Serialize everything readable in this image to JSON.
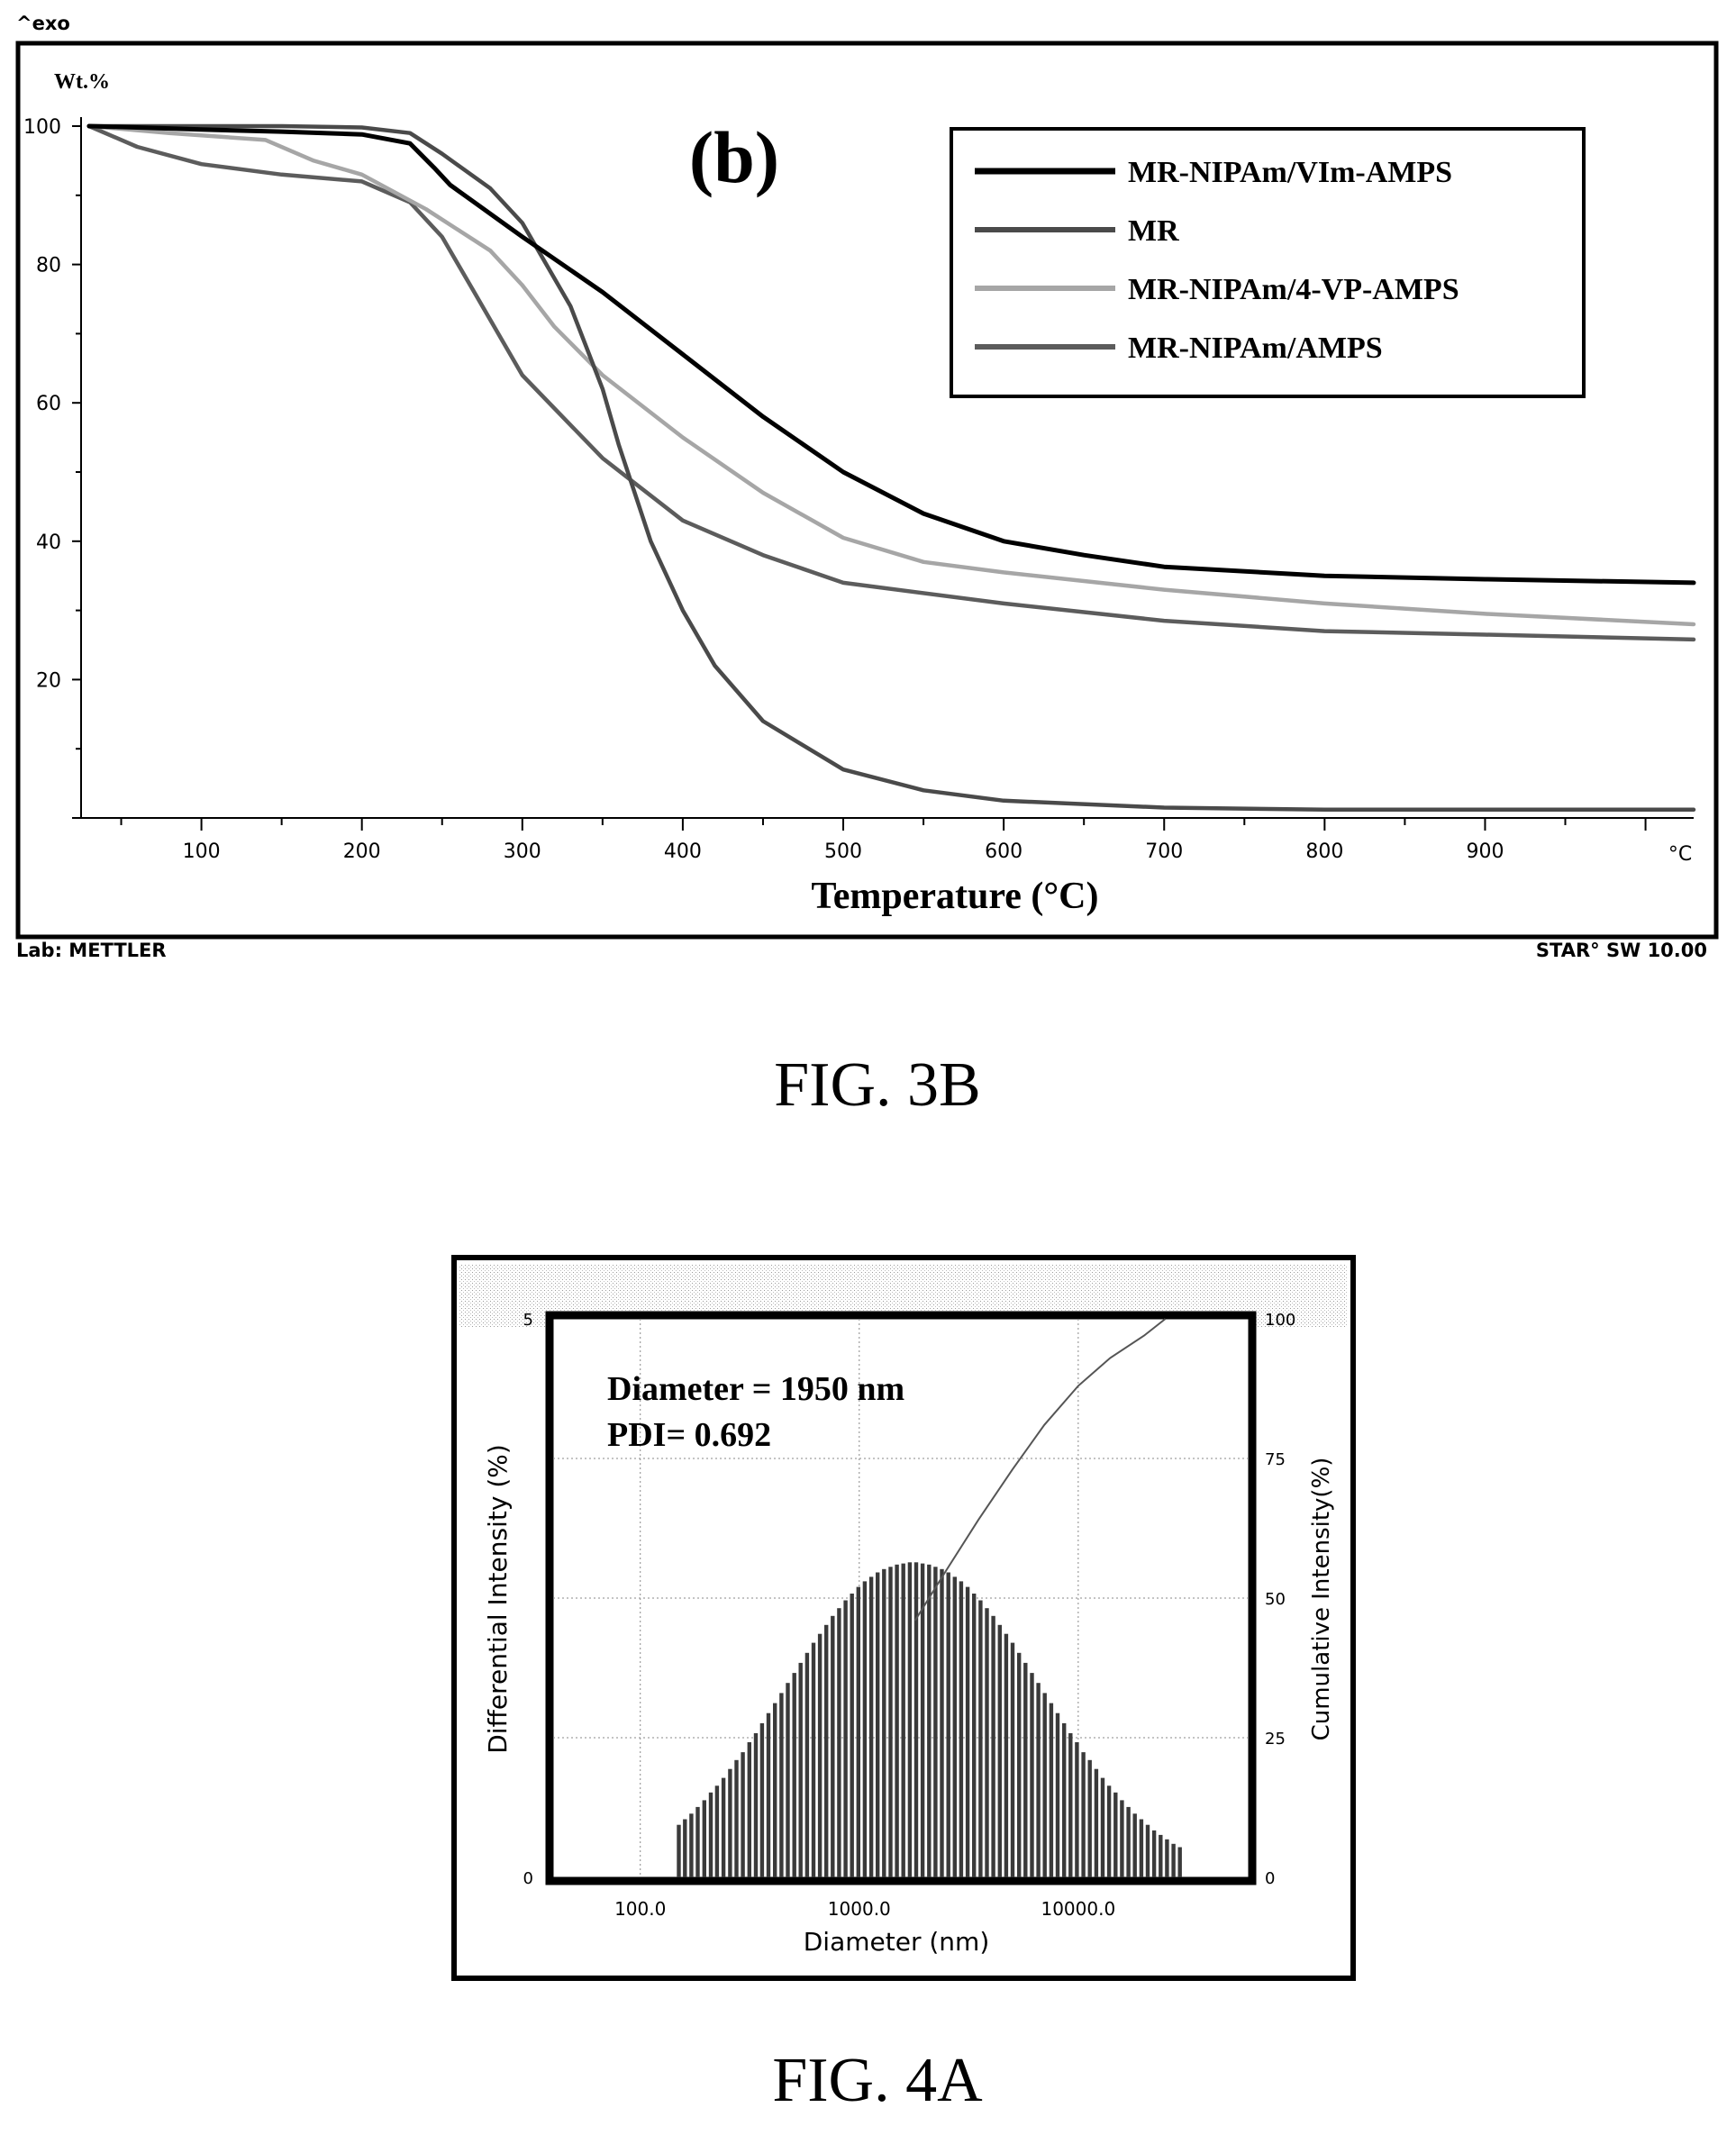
{
  "fig3b": {
    "corner_label": "^exo",
    "panel_label": "(b)",
    "footer_left": "Lab: METTLER",
    "footer_right": "STAR° SW 10.00",
    "caption": "FIG. 3B"
  },
  "fig4a": {
    "caption": "FIG. 4A",
    "annotation_line1": "Diameter = 1950 nm",
    "annotation_line2": "PDI= 0.692"
  },
  "chart_data": [
    {
      "type": "line",
      "xlabel": "Temperature (°C)",
      "ylabel": "Wt.%",
      "x_unit_label": "°C",
      "xlim": [
        25,
        1030
      ],
      "ylim": [
        0,
        100
      ],
      "xticks": [
        100,
        200,
        300,
        400,
        500,
        600,
        700,
        800,
        900
      ],
      "yticks": [
        20,
        40,
        60,
        80,
        100
      ],
      "legend_position": "top-right",
      "series": [
        {
          "name": "MR-NIPAm/VIm-AMPS",
          "color": "#000000",
          "x": [
            30,
            60,
            100,
            150,
            200,
            230,
            245,
            255,
            270,
            300,
            350,
            400,
            450,
            500,
            550,
            600,
            650,
            700,
            800,
            900,
            1030
          ],
          "y": [
            100,
            99.8,
            99.5,
            99.2,
            98.8,
            97.5,
            94,
            91.5,
            89,
            84,
            76,
            67,
            58,
            50,
            44,
            40,
            38,
            36.3,
            35,
            34.5,
            34
          ]
        },
        {
          "name": "MR",
          "color": "#4a4a4a",
          "x": [
            30,
            100,
            150,
            200,
            230,
            250,
            280,
            300,
            330,
            350,
            360,
            370,
            380,
            400,
            420,
            450,
            500,
            550,
            600,
            700,
            800,
            900,
            1030
          ],
          "y": [
            100,
            100,
            100,
            99.8,
            99,
            96,
            91,
            86,
            74,
            62,
            54,
            47,
            40,
            30,
            22,
            14,
            7,
            4,
            2.5,
            1.5,
            1.2,
            1.2,
            1.2
          ]
        },
        {
          "name": "MR-NIPAm/4-VP-AMPS",
          "color": "#a6a6a6",
          "x": [
            30,
            80,
            140,
            170,
            200,
            240,
            280,
            300,
            320,
            350,
            400,
            450,
            500,
            550,
            600,
            700,
            800,
            900,
            1030
          ],
          "y": [
            100,
            99,
            98,
            95,
            93,
            88,
            82,
            77,
            71,
            64,
            55,
            47,
            40.5,
            37,
            35.5,
            33,
            31,
            29.5,
            28
          ]
        },
        {
          "name": "MR-NIPAm/AMPS",
          "color": "#5c5c5c",
          "x": [
            30,
            60,
            100,
            150,
            200,
            230,
            250,
            270,
            300,
            350,
            400,
            450,
            500,
            600,
            700,
            800,
            900,
            1030
          ],
          "y": [
            100,
            97,
            94.5,
            93,
            92,
            89,
            84,
            76,
            64,
            52,
            43,
            38,
            34,
            31,
            28.5,
            27,
            26.5,
            25.8
          ]
        }
      ]
    },
    {
      "type": "bar",
      "xlabel": "Diameter (nm)",
      "ylabel": "Differential Intensity (%)",
      "y2label": "Cumulative Intensity(%)",
      "x_scale": "log",
      "xlim": [
        40,
        60000
      ],
      "ylim": [
        0,
        5
      ],
      "y2lim": [
        0,
        100
      ],
      "xticks": [
        "100.0",
        "1000.0",
        "10000.0"
      ],
      "yticks_left": [
        "0",
        "5"
      ],
      "yticks_right": [
        "0",
        "25",
        "50",
        "75",
        "100"
      ],
      "distribution": {
        "diameters_nm": [
          150,
          160,
          171,
          183,
          196,
          210,
          224,
          240,
          257,
          275,
          294,
          315,
          337,
          360,
          385,
          412,
          441,
          472,
          505,
          540,
          578,
          618,
          661,
          707,
          756,
          809,
          866,
          926,
          991,
          1060,
          1134,
          1213,
          1298,
          1389,
          1486,
          1590,
          1701,
          1820,
          1947,
          2083,
          2229,
          2385,
          2552,
          2730,
          2921,
          3126,
          3344,
          3578,
          3828,
          4096,
          4383,
          4689,
          5017,
          5368,
          5744,
          6146,
          6576,
          7036,
          7528,
          8055,
          8619,
          9222,
          9867,
          10557,
          11296,
          12087,
          12933,
          13838,
          14807,
          15843,
          16952,
          18139,
          19408,
          20767,
          22221,
          23776,
          25440,
          27221,
          29126
        ],
        "intensity_pct": [
          0.47,
          0.52,
          0.57,
          0.63,
          0.69,
          0.76,
          0.82,
          0.89,
          0.97,
          1.05,
          1.12,
          1.21,
          1.29,
          1.38,
          1.47,
          1.56,
          1.65,
          1.74,
          1.83,
          1.92,
          2.01,
          2.1,
          2.18,
          2.26,
          2.34,
          2.41,
          2.48,
          2.54,
          2.6,
          2.65,
          2.69,
          2.73,
          2.76,
          2.78,
          2.8,
          2.81,
          2.82,
          2.82,
          2.81,
          2.8,
          2.78,
          2.76,
          2.73,
          2.69,
          2.65,
          2.6,
          2.54,
          2.48,
          2.41,
          2.34,
          2.26,
          2.18,
          2.1,
          2.01,
          1.92,
          1.83,
          1.74,
          1.65,
          1.56,
          1.47,
          1.38,
          1.29,
          1.21,
          1.12,
          1.05,
          0.97,
          0.89,
          0.82,
          0.76,
          0.69,
          0.63,
          0.57,
          0.52,
          0.47,
          0.42,
          0.38,
          0.34,
          0.3,
          0.27
        ]
      },
      "cumulative": {
        "diameters_nm": [
          1800,
          2500,
          3500,
          5000,
          7000,
          10000,
          14000,
          20000,
          25000
        ],
        "cumulative_pct": [
          46,
          55,
          64,
          73,
          81,
          88,
          93,
          97,
          100
        ]
      }
    }
  ]
}
